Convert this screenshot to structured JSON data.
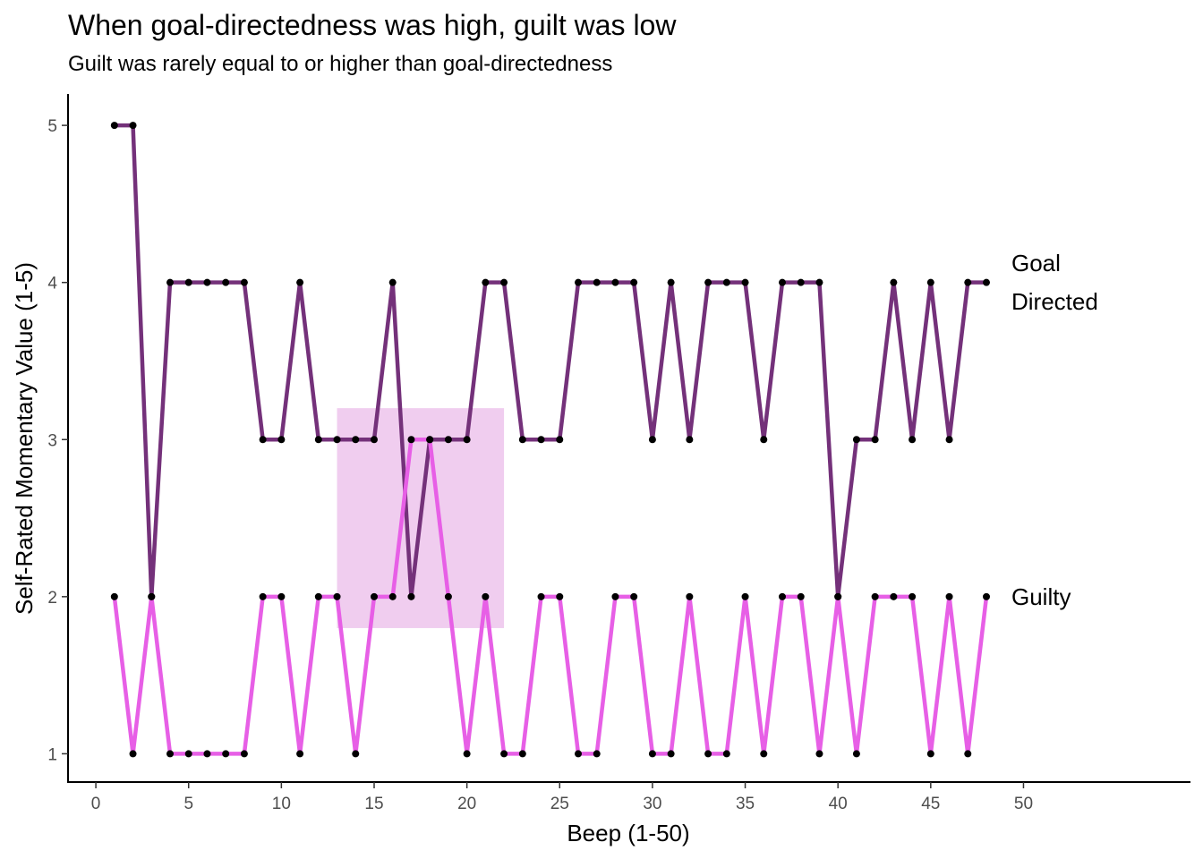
{
  "chart_data": {
    "type": "line",
    "title": "When goal-directedness was high, guilt was low",
    "subtitle": "Guilt was rarely equal to or higher than goal-directedness",
    "xlabel": "Beep (1-50)",
    "ylabel": "Self-Rated Momentary Value (1-5)",
    "xlim": [
      -1.5,
      59
    ],
    "ylim": [
      0.82,
      5.2
    ],
    "x_ticks": [
      0,
      5,
      10,
      15,
      20,
      25,
      30,
      35,
      40,
      45,
      50
    ],
    "y_ticks": [
      1,
      2,
      3,
      4,
      5
    ],
    "grid": false,
    "x": [
      1,
      2,
      3,
      4,
      5,
      6,
      7,
      8,
      9,
      10,
      11,
      12,
      13,
      14,
      15,
      16,
      17,
      18,
      19,
      20,
      21,
      22,
      23,
      24,
      25,
      26,
      27,
      28,
      29,
      30,
      31,
      32,
      33,
      34,
      35,
      36,
      37,
      38,
      39,
      40,
      41,
      42,
      43,
      44,
      45,
      46,
      47,
      48
    ],
    "series": [
      {
        "name": "Goal Directed",
        "label_lines": [
          "Goal",
          "Directed"
        ],
        "color": "#74317a",
        "values": [
          5,
          5,
          2,
          4,
          4,
          4,
          4,
          4,
          3,
          3,
          4,
          3,
          3,
          3,
          3,
          4,
          2,
          3,
          3,
          3,
          4,
          4,
          3,
          3,
          3,
          4,
          4,
          4,
          4,
          3,
          4,
          3,
          4,
          4,
          4,
          3,
          4,
          4,
          4,
          2,
          3,
          3,
          4,
          3,
          4,
          3,
          4,
          4
        ]
      },
      {
        "name": "Guilty",
        "label_lines": [
          "Guilty"
        ],
        "color": "#e75fe6",
        "values": [
          2,
          1,
          2,
          1,
          1,
          1,
          1,
          1,
          2,
          2,
          1,
          2,
          2,
          1,
          2,
          2,
          3,
          3,
          2,
          1,
          2,
          1,
          1,
          2,
          2,
          1,
          1,
          2,
          2,
          1,
          1,
          2,
          1,
          1,
          2,
          1,
          2,
          2,
          1,
          2,
          1,
          2,
          2,
          2,
          1,
          2,
          1,
          2
        ]
      }
    ],
    "highlight": {
      "x_range": [
        13,
        22
      ],
      "y_range": [
        1.8,
        3.2
      ],
      "color": "#f0cdef"
    },
    "point_color": "#000000"
  }
}
